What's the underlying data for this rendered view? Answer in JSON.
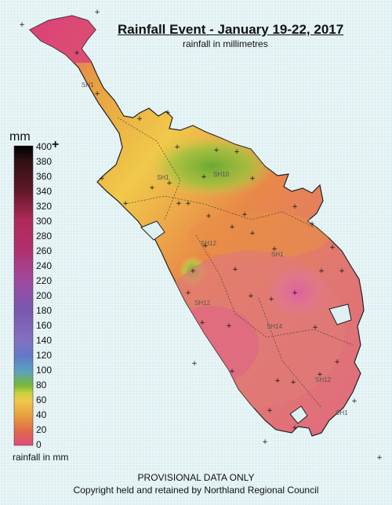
{
  "header": {
    "title": "Rainfall Event - January 19-22, 2017",
    "subtitle": "rainfall in millimetres"
  },
  "legend": {
    "unit_title": "mm",
    "overflow_marker": "+",
    "ticks": [
      "400",
      "380",
      "360",
      "340",
      "320",
      "300",
      "280",
      "260",
      "240",
      "220",
      "200",
      "180",
      "160",
      "140",
      "120",
      "100",
      "80",
      "60",
      "40",
      "20",
      "0"
    ],
    "bottom_label": "rainfall in mm",
    "color_stops": [
      {
        "value": 0,
        "color": "#e04a78"
      },
      {
        "value": 20,
        "color": "#e06b4a"
      },
      {
        "value": 40,
        "color": "#e8a040"
      },
      {
        "value": 60,
        "color": "#f0c94a"
      },
      {
        "value": 70,
        "color": "#c8d040"
      },
      {
        "value": 80,
        "color": "#7ab83a"
      },
      {
        "value": 100,
        "color": "#5aa0c0"
      },
      {
        "value": 120,
        "color": "#6478c8"
      },
      {
        "value": 140,
        "color": "#8470c0"
      },
      {
        "value": 180,
        "color": "#7a58b0"
      },
      {
        "value": 220,
        "color": "#a04aa0"
      },
      {
        "value": 260,
        "color": "#b03070"
      },
      {
        "value": 300,
        "color": "#b02a5a"
      },
      {
        "value": 340,
        "color": "#601828"
      },
      {
        "value": 380,
        "color": "#301014"
      },
      {
        "value": 400,
        "color": "#000000"
      }
    ]
  },
  "map": {
    "road_labels": [
      "SH1",
      "SH1",
      "SH10",
      "SH12",
      "SH1",
      "SH12",
      "SH14",
      "SH12",
      "SH1"
    ]
  },
  "footer": {
    "line1": "PROVISIONAL DATA ONLY",
    "line2": "Copyright held and retained by Northland Regional Council"
  }
}
